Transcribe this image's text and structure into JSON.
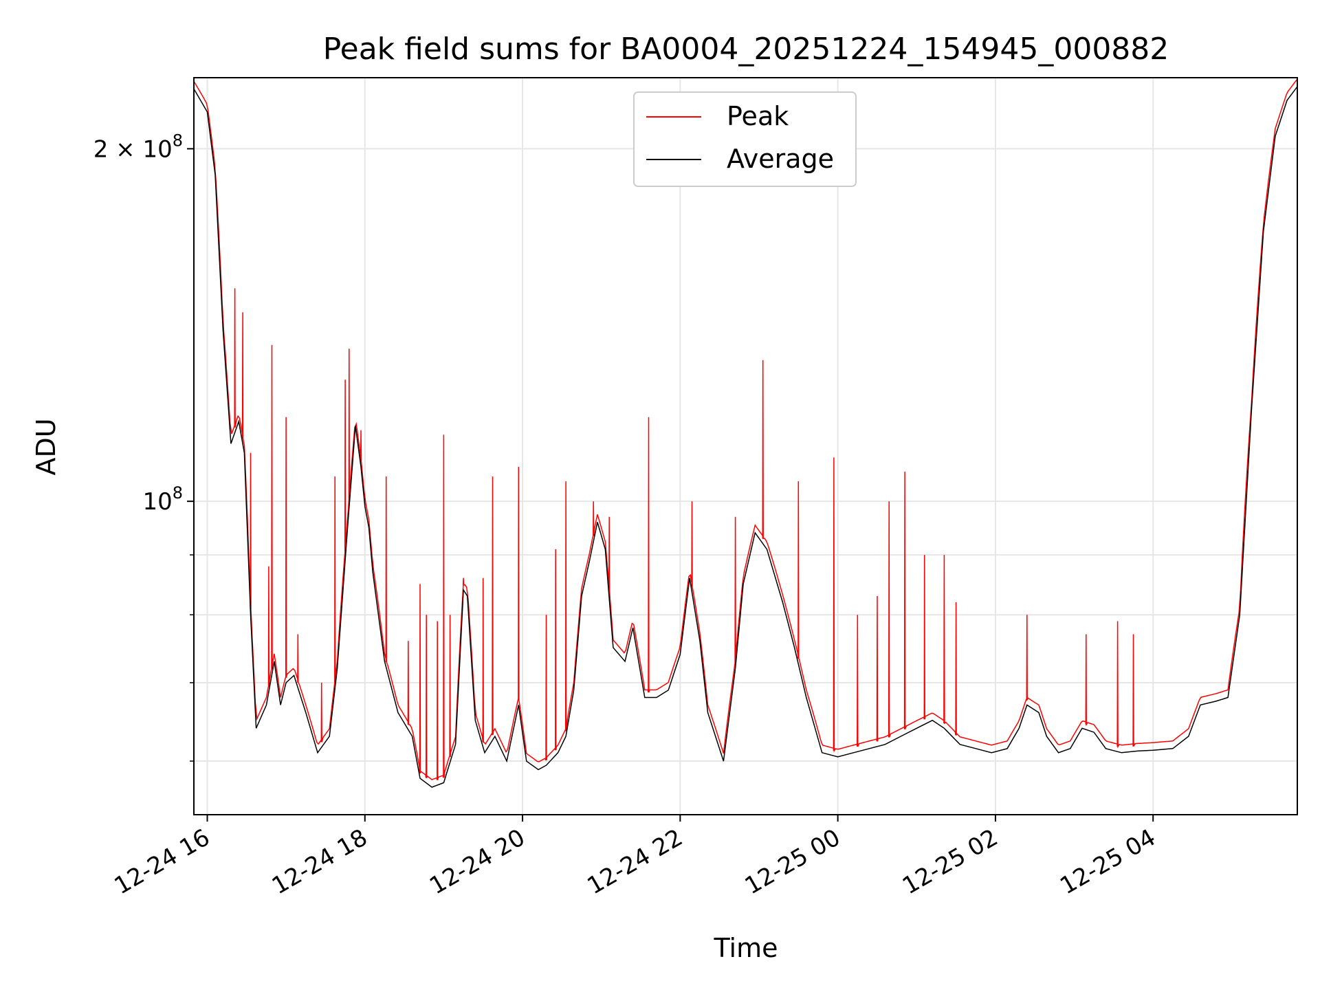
{
  "chart_data": {
    "type": "line",
    "title": "Peak field sums for BA0004_20251224_154945_000882",
    "xlabel": "Time",
    "ylabel": "ADU",
    "yscale": "log",
    "ylim": [
      54000000,
      230000000
    ],
    "xlim_hours": [
      15.83,
      29.83
    ],
    "grid": true,
    "legend_position": "upper-center",
    "x_ticks": [
      {
        "hour": 16,
        "label": "12-24 16"
      },
      {
        "hour": 18,
        "label": "12-24 18"
      },
      {
        "hour": 20,
        "label": "12-24 20"
      },
      {
        "hour": 22,
        "label": "12-24 22"
      },
      {
        "hour": 24,
        "label": "12-25 00"
      },
      {
        "hour": 26,
        "label": "12-25 02"
      },
      {
        "hour": 28,
        "label": "12-25 04"
      }
    ],
    "y_major_ticks": [
      {
        "value": 100000000,
        "base": "10",
        "exp": "8"
      },
      {
        "value": 200000000,
        "base": "2 × 10",
        "exp": "8"
      }
    ],
    "y_minor_ticks": [
      60000000,
      70000000,
      80000000,
      90000000
    ],
    "series": [
      {
        "name": "Peak",
        "color": "#ff0000",
        "spikes": [
          [
            16.35,
            152000000
          ],
          [
            16.45,
            145000000
          ],
          [
            16.55,
            110000000
          ],
          [
            16.82,
            136000000
          ],
          [
            16.78,
            88000000
          ],
          [
            17.0,
            118000000
          ],
          [
            17.15,
            77000000
          ],
          [
            17.45,
            70000000
          ],
          [
            17.62,
            105000000
          ],
          [
            17.75,
            127000000
          ],
          [
            17.8,
            135000000
          ],
          [
            17.95,
            115000000
          ],
          [
            18.27,
            105000000
          ],
          [
            18.55,
            76000000
          ],
          [
            18.7,
            85000000
          ],
          [
            18.78,
            80000000
          ],
          [
            18.92,
            79000000
          ],
          [
            19.0,
            114000000
          ],
          [
            19.08,
            80000000
          ],
          [
            19.25,
            86000000
          ],
          [
            19.5,
            86000000
          ],
          [
            19.62,
            105000000
          ],
          [
            19.95,
            107000000
          ],
          [
            20.3,
            80000000
          ],
          [
            20.42,
            91000000
          ],
          [
            20.55,
            104000000
          ],
          [
            20.9,
            100000000
          ],
          [
            21.1,
            97000000
          ],
          [
            21.6,
            118000000
          ],
          [
            22.15,
            100000000
          ],
          [
            22.7,
            97000000
          ],
          [
            23.05,
            132000000
          ],
          [
            23.5,
            104000000
          ],
          [
            23.95,
            109000000
          ],
          [
            24.25,
            80000000
          ],
          [
            24.5,
            83000000
          ],
          [
            24.65,
            100000000
          ],
          [
            24.85,
            106000000
          ],
          [
            25.1,
            90000000
          ],
          [
            25.35,
            90000000
          ],
          [
            25.5,
            82000000
          ],
          [
            26.4,
            80000000
          ],
          [
            27.15,
            77000000
          ],
          [
            27.55,
            79000000
          ],
          [
            27.75,
            77000000
          ]
        ]
      },
      {
        "name": "Average",
        "color": "#000000",
        "points": [
          [
            15.83,
            225000000
          ],
          [
            16.0,
            215000000
          ],
          [
            16.1,
            190000000
          ],
          [
            16.2,
            140000000
          ],
          [
            16.3,
            112000000
          ],
          [
            16.4,
            117000000
          ],
          [
            16.47,
            110000000
          ],
          [
            16.55,
            80000000
          ],
          [
            16.62,
            64000000
          ],
          [
            16.75,
            67000000
          ],
          [
            16.85,
            73000000
          ],
          [
            16.93,
            67000000
          ],
          [
            17.0,
            70000000
          ],
          [
            17.1,
            71000000
          ],
          [
            17.25,
            66000000
          ],
          [
            17.4,
            61000000
          ],
          [
            17.55,
            63000000
          ],
          [
            17.65,
            72000000
          ],
          [
            17.78,
            95000000
          ],
          [
            17.88,
            116000000
          ],
          [
            17.95,
            107000000
          ],
          [
            18.0,
            99000000
          ],
          [
            18.05,
            95000000
          ],
          [
            18.1,
            87000000
          ],
          [
            18.25,
            73000000
          ],
          [
            18.42,
            66000000
          ],
          [
            18.6,
            63000000
          ],
          [
            18.7,
            58000000
          ],
          [
            18.85,
            57000000
          ],
          [
            19.0,
            57500000
          ],
          [
            19.15,
            62000000
          ],
          [
            19.25,
            84000000
          ],
          [
            19.3,
            83000000
          ],
          [
            19.4,
            65000000
          ],
          [
            19.52,
            61000000
          ],
          [
            19.65,
            63000000
          ],
          [
            19.8,
            60000000
          ],
          [
            19.95,
            67000000
          ],
          [
            20.05,
            60000000
          ],
          [
            20.2,
            59000000
          ],
          [
            20.3,
            59500000
          ],
          [
            20.45,
            61000000
          ],
          [
            20.55,
            63000000
          ],
          [
            20.65,
            69000000
          ],
          [
            20.75,
            83000000
          ],
          [
            20.85,
            89000000
          ],
          [
            20.95,
            96000000
          ],
          [
            21.05,
            91000000
          ],
          [
            21.15,
            75000000
          ],
          [
            21.3,
            73000000
          ],
          [
            21.4,
            78000000
          ],
          [
            21.55,
            68000000
          ],
          [
            21.7,
            68000000
          ],
          [
            21.85,
            69000000
          ],
          [
            22.0,
            74000000
          ],
          [
            22.12,
            86000000
          ],
          [
            22.25,
            76000000
          ],
          [
            22.35,
            66000000
          ],
          [
            22.55,
            60000000
          ],
          [
            22.7,
            72000000
          ],
          [
            22.8,
            85000000
          ],
          [
            22.95,
            94000000
          ],
          [
            23.1,
            91000000
          ],
          [
            23.3,
            82000000
          ],
          [
            23.45,
            75000000
          ],
          [
            23.6,
            68000000
          ],
          [
            23.8,
            61000000
          ],
          [
            24.0,
            60500000
          ],
          [
            24.2,
            61000000
          ],
          [
            24.4,
            61500000
          ],
          [
            24.6,
            62000000
          ],
          [
            24.8,
            63000000
          ],
          [
            25.0,
            64000000
          ],
          [
            25.2,
            65000000
          ],
          [
            25.35,
            64000000
          ],
          [
            25.55,
            62000000
          ],
          [
            25.75,
            61500000
          ],
          [
            25.95,
            61000000
          ],
          [
            26.15,
            61500000
          ],
          [
            26.3,
            64000000
          ],
          [
            26.4,
            67000000
          ],
          [
            26.55,
            66000000
          ],
          [
            26.65,
            63000000
          ],
          [
            26.8,
            61000000
          ],
          [
            26.95,
            61500000
          ],
          [
            27.1,
            64000000
          ],
          [
            27.25,
            63500000
          ],
          [
            27.4,
            61500000
          ],
          [
            27.6,
            61000000
          ],
          [
            27.8,
            61200000
          ],
          [
            28.0,
            61300000
          ],
          [
            28.25,
            61500000
          ],
          [
            28.45,
            63000000
          ],
          [
            28.6,
            67000000
          ],
          [
            28.8,
            67500000
          ],
          [
            28.95,
            68000000
          ],
          [
            29.1,
            80000000
          ],
          [
            29.25,
            120000000
          ],
          [
            29.4,
            170000000
          ],
          [
            29.55,
            205000000
          ],
          [
            29.7,
            220000000
          ],
          [
            29.83,
            226000000
          ]
        ]
      }
    ]
  }
}
